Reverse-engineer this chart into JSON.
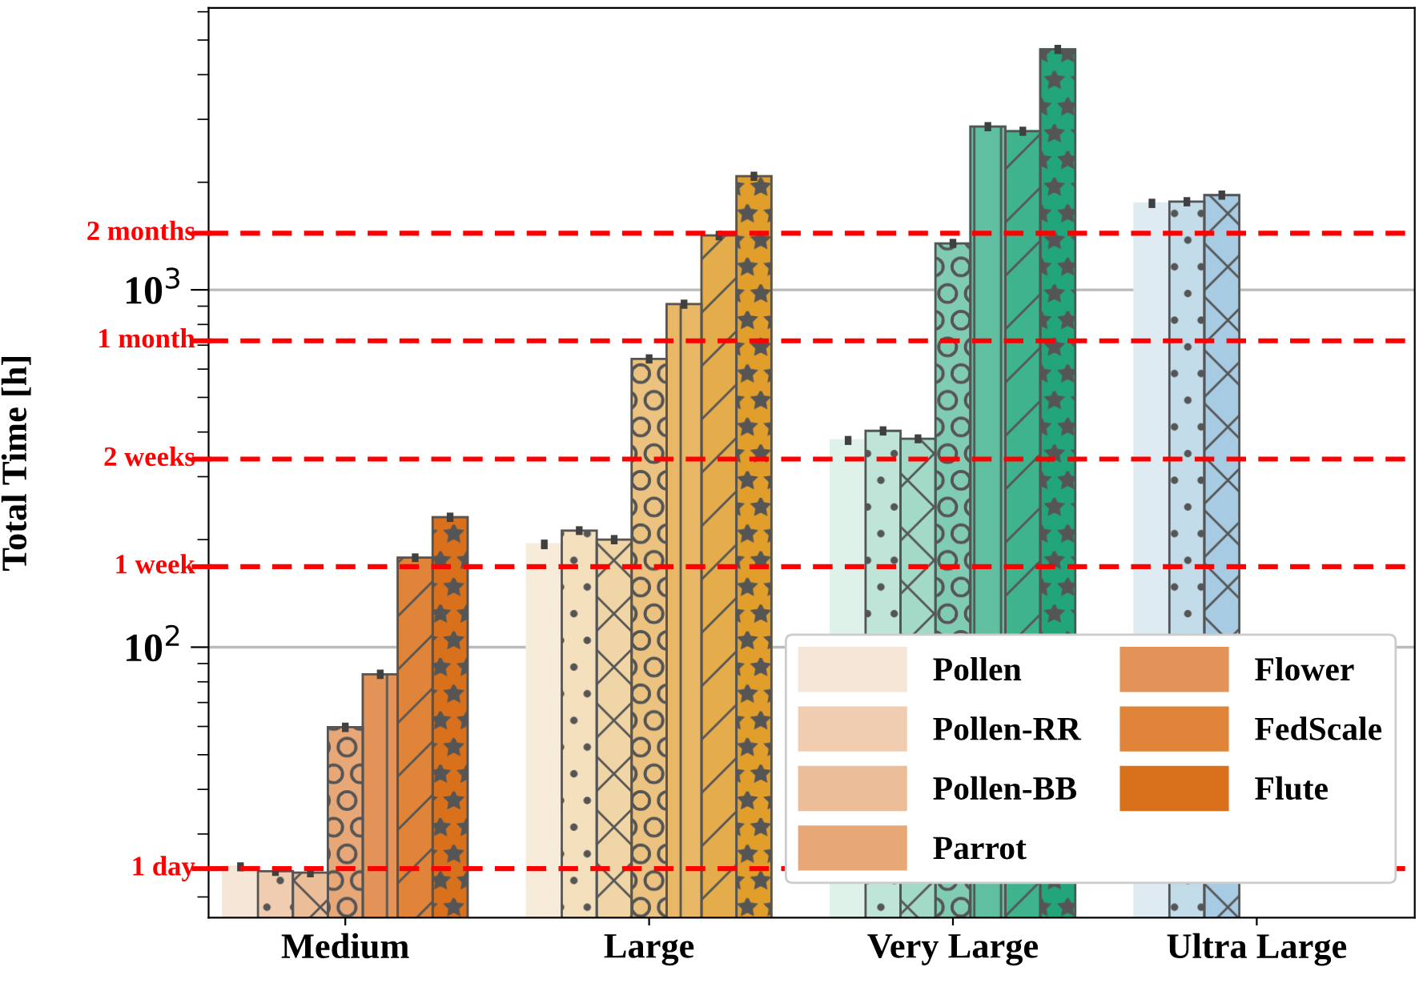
{
  "chart_data": {
    "type": "bar",
    "ylabel": "Total Time [h]",
    "log": true,
    "categories": [
      "Medium",
      "Large",
      "Very Large",
      "Ultra Large"
    ],
    "series": [
      {
        "name": "Pollen",
        "colors": [
          "#f6e6d8",
          "#f6ecd9",
          "#dff2ea",
          "#deebf3"
        ],
        "values": [
          24.3,
          194,
          379,
          1746
        ],
        "errors": [
          0.7,
          6,
          11,
          52
        ]
      },
      {
        "name": "Pollen-RR",
        "colors": [
          "#f0cdb0",
          "#f4e0bc",
          "#bfe5d9",
          "#c3dcea"
        ],
        "values": [
          23.6,
          212,
          403,
          1765
        ],
        "errors": [
          0.7,
          6,
          12,
          53
        ]
      },
      {
        "name": "Pollen-BB",
        "colors": [
          "#ebbd98",
          "#f0d5a6",
          "#a3d9c7",
          "#a7cbe2"
        ],
        "values": [
          23.4,
          200,
          383,
          1841
        ],
        "errors": [
          0.7,
          6,
          11,
          55
        ]
      },
      {
        "name": "Parrot",
        "colors": [
          "#e8a777",
          "#ebc27f",
          "#80cbb3",
          null
        ],
        "values": [
          59.7,
          641,
          1349,
          null
        ],
        "errors": [
          1.8,
          19,
          40,
          null
        ]
      },
      {
        "name": "Flower",
        "colors": [
          "#e39357",
          "#e8b866",
          "#60bfa1",
          null
        ],
        "values": [
          84,
          912,
          2863,
          null
        ],
        "errors": [
          2.5,
          27,
          86,
          null
        ]
      },
      {
        "name": "FedScale",
        "colors": [
          "#df8438",
          "#e5ac4b",
          "#3fb38d",
          null
        ],
        "values": [
          178,
          1419,
          2779,
          null
        ],
        "errors": [
          5,
          43,
          83,
          null
        ]
      },
      {
        "name": "Flute",
        "colors": [
          "#d9711c",
          "#e29e2b",
          "#22a57a",
          null
        ],
        "values": [
          231,
          2080,
          4710,
          null
        ],
        "errors": [
          7,
          62,
          141,
          null
        ]
      }
    ],
    "ylim": [
      17.5,
      6150
    ],
    "yticks": [
      {
        "value": 100,
        "label": "10$^{2}$"
      },
      {
        "value": 1000,
        "label": "10$^{3}$"
      }
    ],
    "ref_lines": [
      {
        "axis": "y",
        "value": 24,
        "label": "1 day",
        "color": "#ff0000",
        "line_style": "dashed"
      },
      {
        "axis": "y",
        "value": 168,
        "label": "1 week",
        "color": "#ff0000",
        "line_style": "dashed"
      },
      {
        "axis": "y",
        "value": 336,
        "label": "2 weeks",
        "color": "#ff0000",
        "line_style": "dashed"
      },
      {
        "axis": "y",
        "value": 720,
        "label": "1 month",
        "color": "#ff0000",
        "line_style": "dashed"
      },
      {
        "axis": "y",
        "value": 1440,
        "label": "2 months",
        "color": "#ff0000",
        "line_style": "dashed"
      }
    ],
    "grid": "y",
    "legend": "bottom right"
  }
}
